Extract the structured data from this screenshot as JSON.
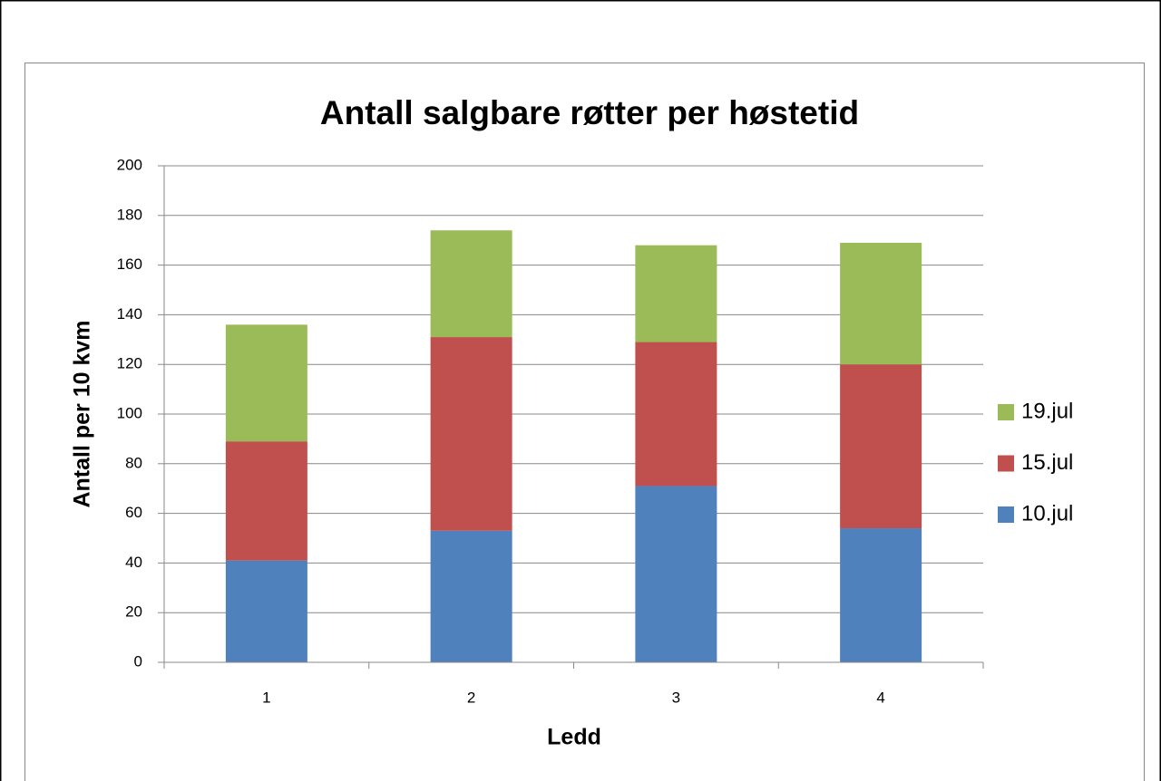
{
  "chart_data": {
    "type": "stacked_bar",
    "title": "Antall salgbare røtter per høstetid",
    "x_label": "Ledd",
    "y_label": "Antall per 10 kvm",
    "categories": [
      "1",
      "2",
      "3",
      "4"
    ],
    "series": [
      {
        "name": "10.jul",
        "color": "#4f81bd",
        "values": [
          41,
          53,
          71,
          54
        ]
      },
      {
        "name": "15.jul",
        "color": "#c0504d",
        "values": [
          48,
          78,
          58,
          66
        ]
      },
      {
        "name": "19.jul",
        "color": "#9bbb59",
        "values": [
          47,
          43,
          39,
          49
        ]
      }
    ],
    "ylim": [
      0,
      200
    ],
    "yticks": [
      0,
      20,
      40,
      60,
      80,
      100,
      120,
      140,
      160,
      180,
      200
    ],
    "grid": true,
    "legend": "right"
  }
}
